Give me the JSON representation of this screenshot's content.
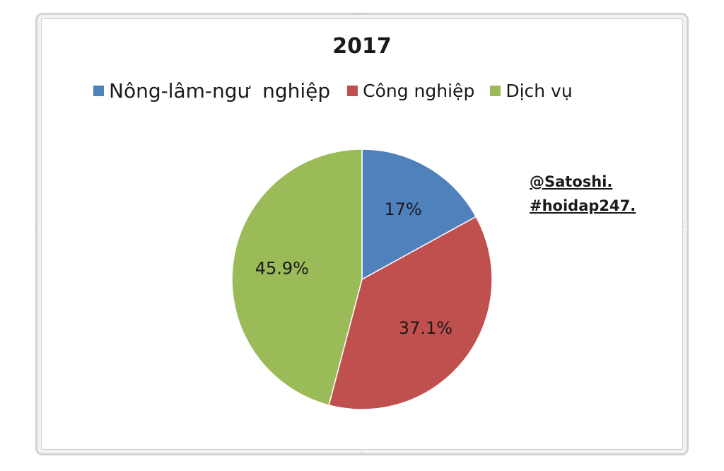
{
  "chart_data": {
    "type": "pie",
    "title": "2017",
    "legend_position": "top",
    "slices": [
      {
        "name": "Nông-lâm-ngư  nghiệp",
        "value": 17,
        "label": "17%",
        "color": "#4f81bd"
      },
      {
        "name": "Công nghiệp",
        "value": 37.1,
        "label": "37.1%",
        "color": "#c0504d"
      },
      {
        "name": "Dịch vụ",
        "value": 45.9,
        "label": "45.9%",
        "color": "#9bbb59"
      }
    ]
  },
  "watermark": {
    "line1": "@Satoshi.",
    "line2": "#hoidap247."
  }
}
